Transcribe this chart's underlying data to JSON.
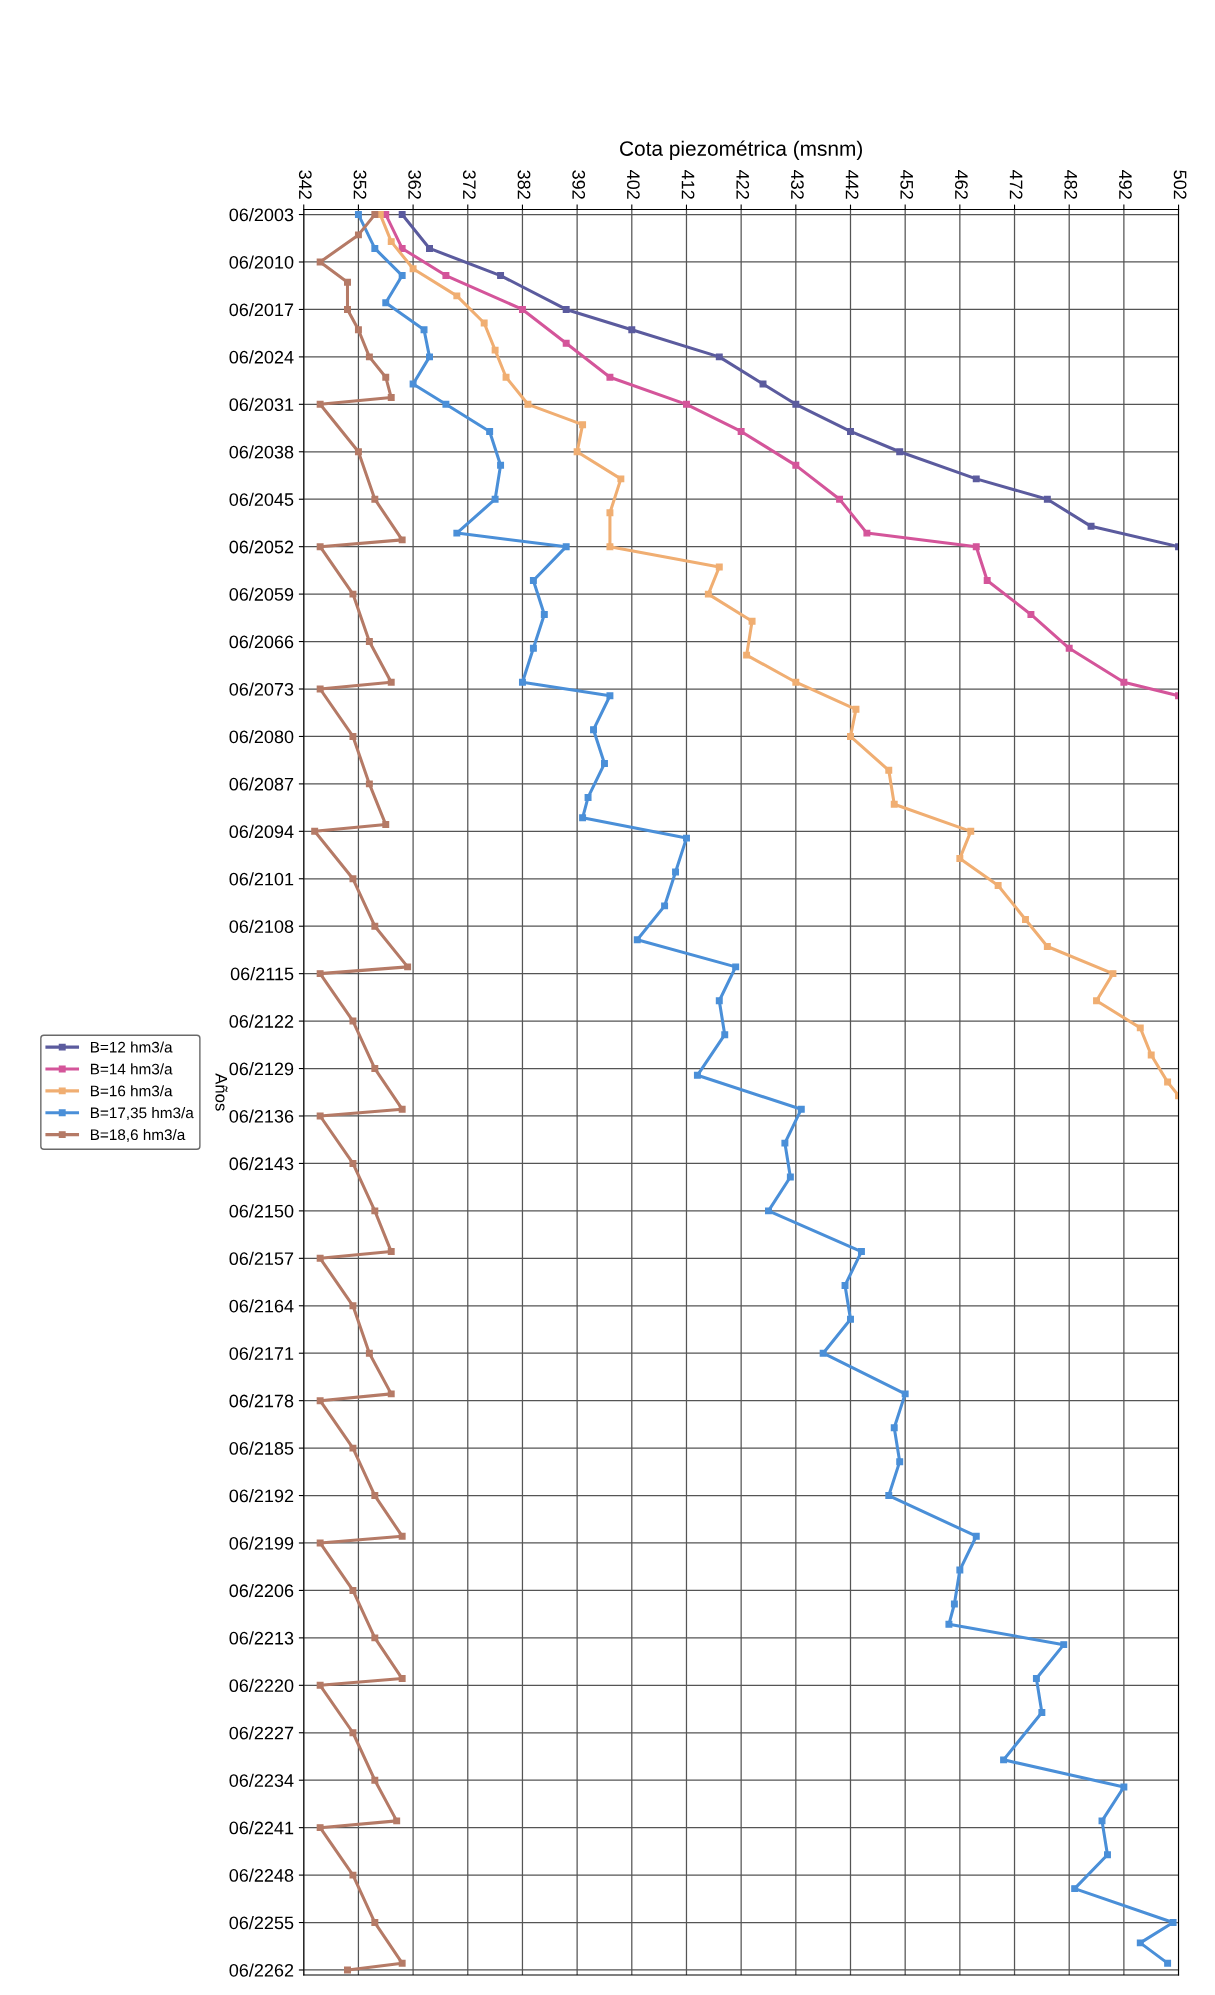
{
  "chart_data": {
    "type": "line",
    "orientation": "horizontal",
    "xlabel": "Cota piezométrica (msnm)",
    "ylabel": "Años",
    "xlim": [
      342,
      502
    ],
    "xticks": [
      342,
      352,
      362,
      372,
      382,
      392,
      402,
      412,
      422,
      432,
      442,
      452,
      462,
      472,
      482,
      492,
      502
    ],
    "ylim": [
      "2263-03",
      "2002-09"
    ],
    "yticks": [
      {
        "value": "2003-06",
        "label": "06/2003"
      },
      {
        "value": "2010-06",
        "label": "06/2010"
      },
      {
        "value": "2017-06",
        "label": "06/2017"
      },
      {
        "value": "2024-06",
        "label": "06/2024"
      },
      {
        "value": "2031-06",
        "label": "06/2031"
      },
      {
        "value": "2038-06",
        "label": "06/2038"
      },
      {
        "value": "2045-06",
        "label": "06/2045"
      },
      {
        "value": "2052-06",
        "label": "06/2052"
      },
      {
        "value": "2059-06",
        "label": "06/2059"
      },
      {
        "value": "2066-06",
        "label": "06/2066"
      },
      {
        "value": "2073-06",
        "label": "06/2073"
      },
      {
        "value": "2080-06",
        "label": "06/2080"
      },
      {
        "value": "2087-06",
        "label": "06/2087"
      },
      {
        "value": "2094-06",
        "label": "06/2094"
      },
      {
        "value": "2101-06",
        "label": "06/2101"
      },
      {
        "value": "2108-06",
        "label": "06/2108"
      },
      {
        "value": "2115-06",
        "label": "06/2115"
      },
      {
        "value": "2122-06",
        "label": "06/2122"
      },
      {
        "value": "2129-06",
        "label": "06/2129"
      },
      {
        "value": "2136-06",
        "label": "06/2136"
      },
      {
        "value": "2143-06",
        "label": "06/2143"
      },
      {
        "value": "2150-06",
        "label": "06/2150"
      },
      {
        "value": "2157-06",
        "label": "06/2157"
      },
      {
        "value": "2164-06",
        "label": "06/2164"
      },
      {
        "value": "2171-06",
        "label": "06/2171"
      },
      {
        "value": "2178-06",
        "label": "06/2178"
      },
      {
        "value": "2185-06",
        "label": "06/2185"
      },
      {
        "value": "2192-06",
        "label": "06/2192"
      },
      {
        "value": "2199-06",
        "label": "06/2199"
      },
      {
        "value": "2206-06",
        "label": "06/2206"
      },
      {
        "value": "2213-06",
        "label": "06/2213"
      },
      {
        "value": "2220-06",
        "label": "06/2220"
      },
      {
        "value": "2227-06",
        "label": "06/2227"
      },
      {
        "value": "2234-06",
        "label": "06/2234"
      },
      {
        "value": "2241-06",
        "label": "06/2241"
      },
      {
        "value": "2248-06",
        "label": "06/2248"
      },
      {
        "value": "2255-06",
        "label": "06/2255"
      },
      {
        "value": "2262-06",
        "label": "06/2262"
      }
    ],
    "grid": true,
    "legend": "left",
    "marker": "square",
    "line_style": "solid",
    "series": [
      {
        "name": "B=12 hm3/a",
        "color": "#5b5b9e",
        "x": [
          "2003-06",
          "2008-06",
          "2012-06",
          "2017-06",
          "2020-06",
          "2024-06",
          "2028-06",
          "2031-06",
          "2035-06",
          "2038-06",
          "2042-06",
          "2045-06",
          "2049-06",
          "2052-06"
        ],
        "values": [
          360,
          365,
          378,
          390,
          402,
          418,
          426,
          432,
          442,
          451,
          465,
          478,
          486,
          502
        ]
      },
      {
        "name": "B=14 hm3/a",
        "color": "#d4559a",
        "x": [
          "2003-06",
          "2008-06",
          "2012-06",
          "2017-06",
          "2022-06",
          "2027-06",
          "2031-06",
          "2035-06",
          "2040-06",
          "2045-06",
          "2050-06",
          "2052-06",
          "2057-06",
          "2062-06",
          "2067-06",
          "2072-06",
          "2074-06"
        ],
        "values": [
          357,
          360,
          368,
          382,
          390,
          398,
          412,
          422,
          432,
          440,
          445,
          465,
          467,
          475,
          482,
          492,
          502
        ]
      },
      {
        "name": "B=16 hm3/a",
        "color": "#f0ae72",
        "x": [
          "2003-06",
          "2007-06",
          "2011-06",
          "2015-06",
          "2019-06",
          "2023-06",
          "2027-06",
          "2031-06",
          "2034-06",
          "2038-06",
          "2042-06",
          "2047-06",
          "2052-06",
          "2055-06",
          "2059-06",
          "2063-06",
          "2068-06",
          "2072-06",
          "2076-06",
          "2080-06",
          "2085-06",
          "2090-06",
          "2094-06",
          "2098-06",
          "2102-06",
          "2107-06",
          "2111-06",
          "2115-06",
          "2119-06",
          "2123-06",
          "2127-06",
          "2131-06",
          "2133-06"
        ],
        "values": [
          356,
          358,
          362,
          370,
          375,
          377,
          379,
          383,
          393,
          392,
          400,
          398,
          398,
          418,
          416,
          424,
          423,
          432,
          443,
          442,
          449,
          450,
          464,
          462,
          469,
          474,
          478,
          490,
          487,
          495,
          497,
          500,
          502
        ]
      },
      {
        "name": "B=17,35 hm3/a",
        "color": "#4a8fd8",
        "x": [
          "2003-06",
          "2008-06",
          "2012-06",
          "2016-06",
          "2020-06",
          "2024-06",
          "2028-06",
          "2031-06",
          "2035-06",
          "2040-06",
          "2045-06",
          "2050-06",
          "2052-06",
          "2057-06",
          "2062-06",
          "2067-06",
          "2072-06",
          "2074-06",
          "2079-06",
          "2084-06",
          "2089-06",
          "2092-06",
          "2095-06",
          "2100-06",
          "2105-06",
          "2110-06",
          "2114-06",
          "2119-06",
          "2124-06",
          "2130-06",
          "2135-06",
          "2140-06",
          "2145-06",
          "2150-06",
          "2156-06",
          "2161-06",
          "2166-06",
          "2171-06",
          "2177-06",
          "2182-06",
          "2187-06",
          "2192-06",
          "2198-06",
          "2203-06",
          "2208-06",
          "2211-06",
          "2214-06",
          "2219-06",
          "2224-06",
          "2231-06",
          "2235-06",
          "2240-06",
          "2245-06",
          "2250-06",
          "2255-06",
          "2258-06",
          "2261-06"
        ],
        "values": [
          352,
          355,
          360,
          357,
          364,
          365,
          362,
          368,
          376,
          378,
          377,
          370,
          390,
          384,
          386,
          384,
          382,
          398,
          395,
          397,
          394,
          393,
          412,
          410,
          408,
          403,
          421,
          418,
          419,
          414,
          433,
          430,
          431,
          427,
          444,
          441,
          442,
          437,
          452,
          450,
          451,
          449,
          465,
          462,
          461,
          460,
          481,
          476,
          477,
          470,
          492,
          488,
          489,
          483,
          501,
          495,
          500
        ]
      },
      {
        "name": "B=18,6 hm3/a",
        "color": "#b57a66",
        "x": [
          "2003-06",
          "2006-06",
          "2010-06",
          "2013-06",
          "2017-06",
          "2020-06",
          "2024-06",
          "2027-06",
          "2030-06",
          "2031-06",
          "2038-06",
          "2045-06",
          "2051-06",
          "2052-06",
          "2059-06",
          "2066-06",
          "2072-06",
          "2073-06",
          "2080-06",
          "2087-06",
          "2093-06",
          "2094-06",
          "2101-06",
          "2108-06",
          "2114-06",
          "2115-06",
          "2122-06",
          "2129-06",
          "2135-06",
          "2136-06",
          "2143-06",
          "2150-06",
          "2156-06",
          "2157-06",
          "2164-06",
          "2171-06",
          "2177-06",
          "2178-06",
          "2185-06",
          "2192-06",
          "2198-06",
          "2199-06",
          "2206-06",
          "2213-06",
          "2219-06",
          "2220-06",
          "2227-06",
          "2234-06",
          "2240-06",
          "2241-06",
          "2248-06",
          "2255-06",
          "2261-06",
          "2262-06"
        ],
        "values": [
          355,
          352,
          345,
          350,
          350,
          352,
          354,
          357,
          358,
          345,
          352,
          355,
          360,
          345,
          351,
          354,
          358,
          345,
          351,
          354,
          357,
          344,
          351,
          355,
          361,
          345,
          351,
          355,
          360,
          345,
          351,
          355,
          358,
          345,
          351,
          354,
          358,
          345,
          351,
          355,
          360,
          345,
          351,
          355,
          360,
          345,
          351,
          355,
          359,
          345,
          351,
          355,
          360,
          350
        ]
      }
    ]
  }
}
